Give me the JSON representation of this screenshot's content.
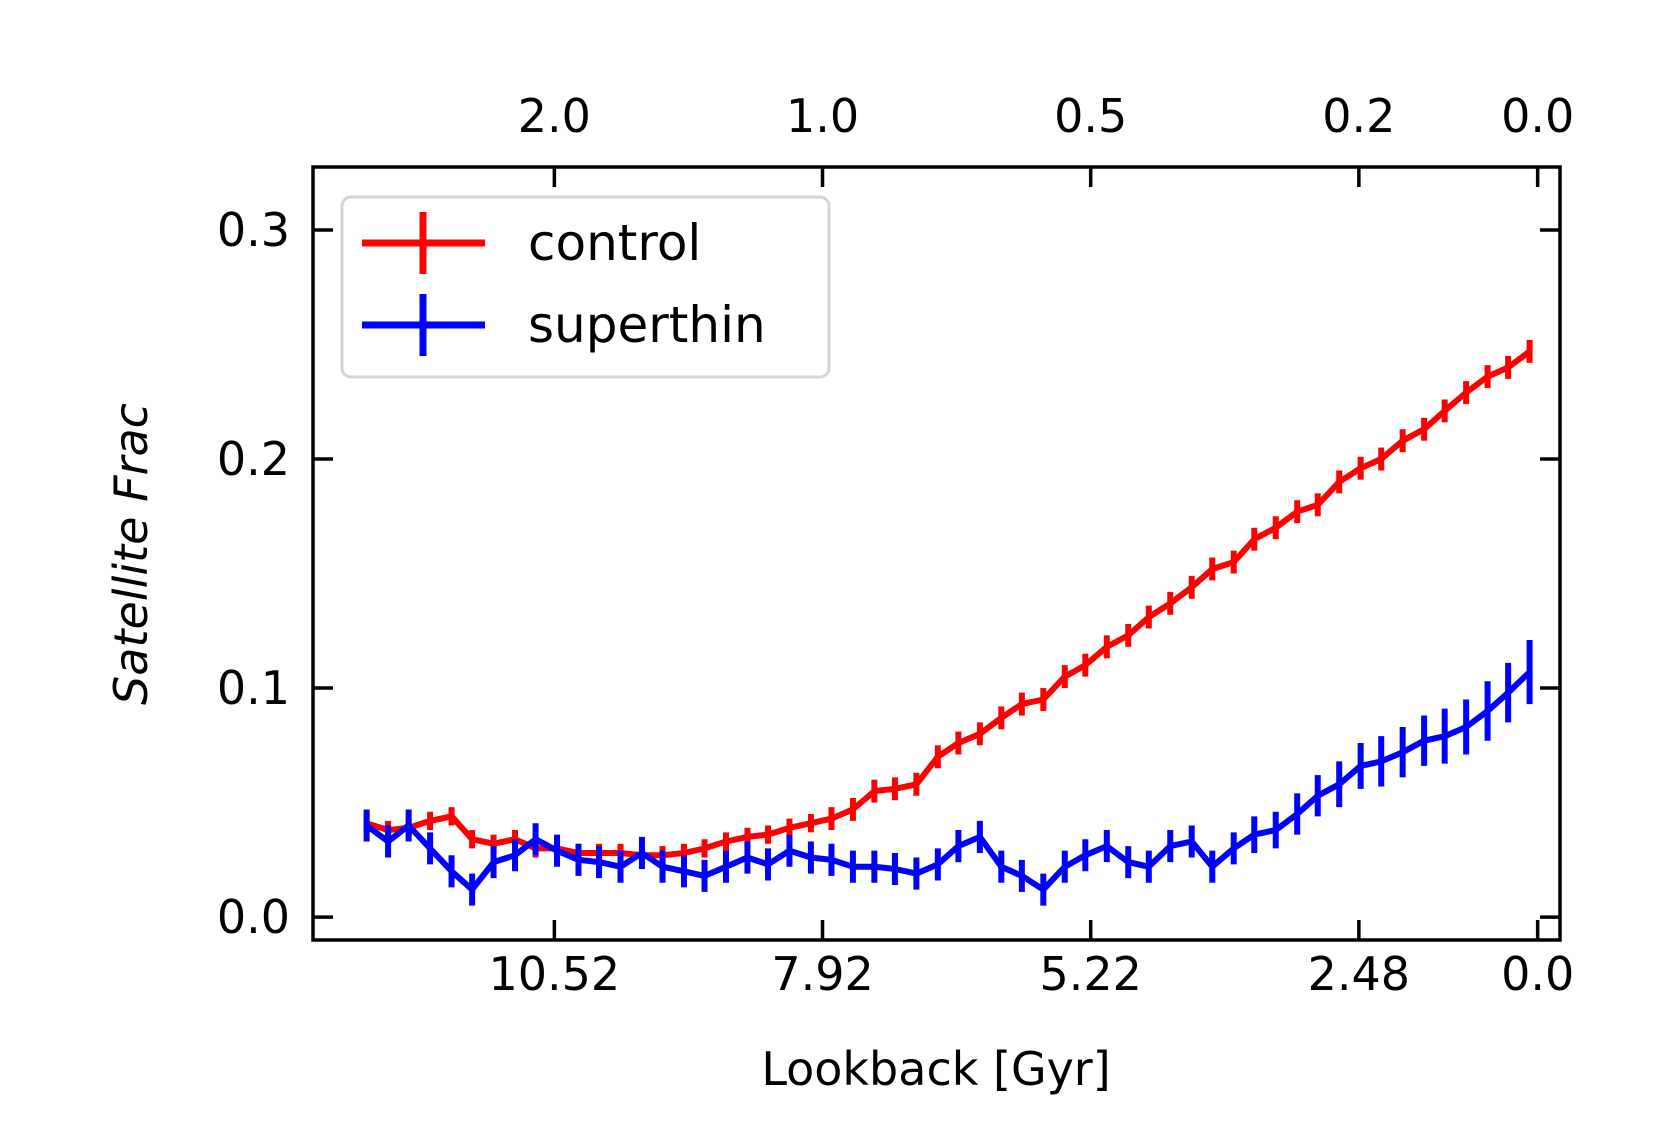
{
  "chart_data": {
    "type": "line",
    "xlabel": "Lookback [Gyr]",
    "ylabel": "Satellite Frac",
    "ylim": [
      -0.01,
      0.3275
    ],
    "xlim": [
      -0.25,
      13.7
    ],
    "grid": false,
    "legend_position": "top-left",
    "x_ticks": [
      {
        "value": 11.0,
        "label": "10.52"
      },
      {
        "value": 8.0,
        "label": "7.92"
      },
      {
        "value": 5.0,
        "label": "5.22"
      },
      {
        "value": 2.0,
        "label": "2.48"
      },
      {
        "value": 0.0,
        "label": "0.0"
      }
    ],
    "top_ticks": [
      {
        "value": 11.0,
        "label": "2.0"
      },
      {
        "value": 8.0,
        "label": "1.0"
      },
      {
        "value": 5.0,
        "label": "0.5"
      },
      {
        "value": 2.0,
        "label": "0.2"
      },
      {
        "value": 0.0,
        "label": "0.0"
      }
    ],
    "y_ticks": [
      {
        "value": 0.0,
        "label": "0.0"
      },
      {
        "value": 0.1,
        "label": "0.1"
      },
      {
        "value": 0.2,
        "label": "0.2"
      },
      {
        "value": 0.3,
        "label": "0.3"
      }
    ],
    "x": [
      13.1,
      12.86,
      12.63,
      12.39,
      12.15,
      11.92,
      11.68,
      11.44,
      11.21,
      10.97,
      10.73,
      10.5,
      10.26,
      10.02,
      9.79,
      9.55,
      9.32,
      9.08,
      8.84,
      8.61,
      8.37,
      8.13,
      7.9,
      7.66,
      7.42,
      7.19,
      6.95,
      6.71,
      6.48,
      6.24,
      6.0,
      5.77,
      5.53,
      5.29,
      5.06,
      4.82,
      4.58,
      4.35,
      4.11,
      3.87,
      3.64,
      3.4,
      3.17,
      2.93,
      2.69,
      2.46,
      2.22,
      1.98,
      1.75,
      1.51,
      1.27,
      1.04,
      0.8,
      0.56,
      0.33,
      0.09
    ],
    "series": [
      {
        "name": "control",
        "color": "#ff0000",
        "values": [
          0.041,
          0.038,
          0.039,
          0.042,
          0.044,
          0.034,
          0.032,
          0.034,
          0.03,
          0.03,
          0.028,
          0.028,
          0.028,
          0.027,
          0.027,
          0.028,
          0.03,
          0.033,
          0.035,
          0.036,
          0.039,
          0.041,
          0.043,
          0.047,
          0.055,
          0.056,
          0.058,
          0.07,
          0.076,
          0.08,
          0.087,
          0.093,
          0.095,
          0.105,
          0.11,
          0.118,
          0.123,
          0.131,
          0.137,
          0.144,
          0.152,
          0.155,
          0.165,
          0.17,
          0.177,
          0.18,
          0.19,
          0.196,
          0.2,
          0.208,
          0.213,
          0.221,
          0.229,
          0.236,
          0.24,
          0.247
        ],
        "errors": [
          0.004,
          0.004,
          0.004,
          0.004,
          0.004,
          0.004,
          0.004,
          0.004,
          0.004,
          0.004,
          0.004,
          0.004,
          0.004,
          0.004,
          0.004,
          0.004,
          0.004,
          0.004,
          0.004,
          0.004,
          0.004,
          0.004,
          0.005,
          0.005,
          0.005,
          0.005,
          0.005,
          0.005,
          0.005,
          0.005,
          0.005,
          0.005,
          0.005,
          0.005,
          0.005,
          0.005,
          0.005,
          0.005,
          0.005,
          0.005,
          0.005,
          0.005,
          0.005,
          0.005,
          0.005,
          0.005,
          0.005,
          0.005,
          0.005,
          0.005,
          0.005,
          0.005,
          0.005,
          0.005,
          0.005,
          0.005
        ]
      },
      {
        "name": "superthin",
        "color": "#0000ff",
        "values": [
          0.04,
          0.033,
          0.04,
          0.03,
          0.02,
          0.012,
          0.024,
          0.027,
          0.034,
          0.029,
          0.025,
          0.024,
          0.022,
          0.028,
          0.022,
          0.02,
          0.018,
          0.022,
          0.026,
          0.023,
          0.029,
          0.026,
          0.025,
          0.022,
          0.022,
          0.021,
          0.019,
          0.023,
          0.031,
          0.035,
          0.022,
          0.018,
          0.012,
          0.022,
          0.027,
          0.031,
          0.024,
          0.022,
          0.031,
          0.033,
          0.022,
          0.03,
          0.036,
          0.038,
          0.045,
          0.053,
          0.058,
          0.066,
          0.068,
          0.072,
          0.077,
          0.079,
          0.083,
          0.09,
          0.098,
          0.107
        ],
        "errors": [
          0.007,
          0.007,
          0.007,
          0.007,
          0.007,
          0.007,
          0.007,
          0.007,
          0.007,
          0.007,
          0.007,
          0.007,
          0.007,
          0.007,
          0.007,
          0.007,
          0.007,
          0.007,
          0.007,
          0.007,
          0.007,
          0.007,
          0.007,
          0.007,
          0.007,
          0.007,
          0.007,
          0.007,
          0.007,
          0.007,
          0.007,
          0.007,
          0.007,
          0.007,
          0.007,
          0.007,
          0.007,
          0.007,
          0.007,
          0.007,
          0.007,
          0.007,
          0.008,
          0.008,
          0.009,
          0.009,
          0.01,
          0.01,
          0.011,
          0.011,
          0.011,
          0.012,
          0.012,
          0.013,
          0.013,
          0.014
        ]
      }
    ]
  }
}
